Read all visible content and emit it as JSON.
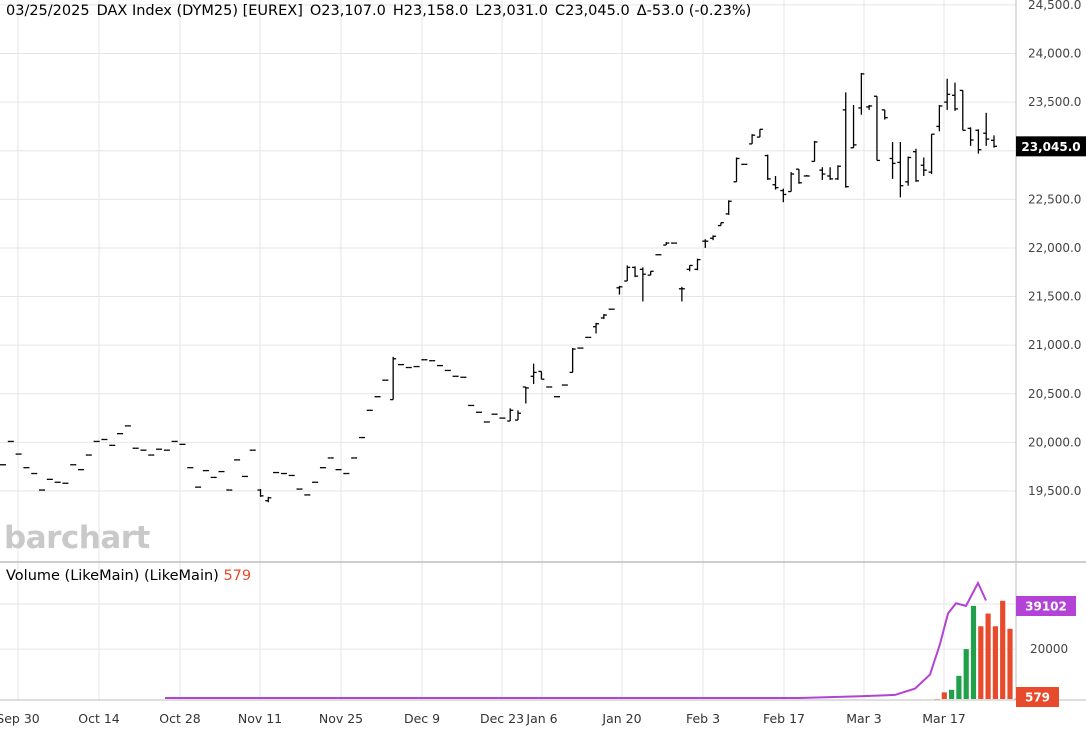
{
  "header": {
    "date": "03/25/2025",
    "instrument": "DAX Index (DYM25) [EUREX]",
    "open": "O23,107.0",
    "high": "H23,158.0",
    "low": "L23,031.0",
    "close": "C23,045.0",
    "change": "Δ-53.0 (-0.23%)"
  },
  "watermark": "barchart",
  "volume_header": {
    "label": "Volume (LikeMain)  (LikeMain)",
    "value": "579"
  },
  "colors": {
    "grid": "#e6e6e6",
    "bar": "#000000",
    "vol_up": "#21a04a",
    "vol_down": "#e84a2c",
    "avg_line": "#b342d6",
    "price_tag_bg": "#000000",
    "avg_tag_bg": "#b342d6",
    "vol_tag_bg": "#e84a2c"
  },
  "chart_data": [
    {
      "type": "ohlc",
      "title": "DAX Index (DYM25) [EUREX]",
      "x_ticks": [
        "Sep 30",
        "Oct 14",
        "Oct 28",
        "Nov 11",
        "Nov 25",
        "Dec 9",
        "Dec 23",
        "Jan 6",
        "Jan 20",
        "Feb 3",
        "Feb 17",
        "Mar 3",
        "Mar 17"
      ],
      "y_ticks": [
        "19,500.0",
        "20,000.0",
        "20,500.0",
        "21,000.0",
        "21,500.0",
        "22,000.0",
        "22,500.0",
        "23,000.0",
        "23,500.0",
        "24,000.0",
        "24,500.0"
      ],
      "ylim": [
        18770,
        24550
      ],
      "last_price_label": "23,045.0",
      "bars": [
        [
          19770,
          19770,
          19770,
          19770
        ],
        [
          20010,
          20010,
          20010,
          20010
        ],
        [
          19880,
          19880,
          19880,
          19880
        ],
        [
          19740,
          19740,
          19740,
          19740
        ],
        [
          19680,
          19680,
          19680,
          19680
        ],
        [
          19510,
          19510,
          19510,
          19510
        ],
        [
          19620,
          19620,
          19620,
          19620
        ],
        [
          19590,
          19590,
          19590,
          19590
        ],
        [
          19580,
          19580,
          19580,
          19580
        ],
        [
          19770,
          19770,
          19770,
          19770
        ],
        [
          19720,
          19720,
          19720,
          19720
        ],
        [
          19870,
          19870,
          19870,
          19870
        ],
        [
          20010,
          20010,
          20010,
          20010
        ],
        [
          20030,
          20030,
          20030,
          20030
        ],
        [
          19970,
          19970,
          19970,
          19970
        ],
        [
          20090,
          20090,
          20090,
          20090
        ],
        [
          20170,
          20170,
          20170,
          20170
        ],
        [
          19940,
          19940,
          19940,
          19940
        ],
        [
          19920,
          19920,
          19920,
          19920
        ],
        [
          19870,
          19870,
          19870,
          19870
        ],
        [
          19930,
          19930,
          19930,
          19930
        ],
        [
          19920,
          19920,
          19920,
          19920
        ],
        [
          20010,
          20010,
          20010,
          20010
        ],
        [
          19980,
          19980,
          19980,
          19980
        ],
        [
          19740,
          19740,
          19740,
          19740
        ],
        [
          19540,
          19540,
          19540,
          19540
        ],
        [
          19710,
          19710,
          19710,
          19710
        ],
        [
          19640,
          19640,
          19640,
          19640
        ],
        [
          19700,
          19700,
          19700,
          19700
        ],
        [
          19510,
          19510,
          19510,
          19510
        ],
        [
          19820,
          19820,
          19820,
          19820
        ],
        [
          19650,
          19650,
          19650,
          19650
        ],
        [
          19920,
          19920,
          19920,
          19920
        ],
        [
          19510,
          19440,
          19520,
          19450
        ],
        [
          19400,
          19385,
          19440,
          19430
        ],
        [
          19690,
          19690,
          19690,
          19690
        ],
        [
          19680,
          19680,
          19680,
          19680
        ],
        [
          19660,
          19660,
          19660,
          19660
        ],
        [
          19520,
          19520,
          19520,
          19520
        ],
        [
          19460,
          19460,
          19460,
          19460
        ],
        [
          19590,
          19590,
          19590,
          19590
        ],
        [
          19740,
          19740,
          19740,
          19740
        ],
        [
          19840,
          19840,
          19840,
          19840
        ],
        [
          19720,
          19720,
          19720,
          19720
        ],
        [
          19680,
          19680,
          19680,
          19680
        ],
        [
          19840,
          19840,
          19840,
          19840
        ],
        [
          20050,
          20050,
          20050,
          20050
        ],
        [
          20330,
          20330,
          20330,
          20330
        ],
        [
          20470,
          20470,
          20470,
          20470
        ],
        [
          20640,
          20640,
          20640,
          20640
        ],
        [
          20440,
          20440,
          20880,
          20860
        ],
        [
          20800,
          20800,
          20800,
          20800
        ],
        [
          20770,
          20770,
          20770,
          20770
        ],
        [
          20780,
          20780,
          20780,
          20780
        ],
        [
          20850,
          20850,
          20850,
          20850
        ],
        [
          20840,
          20840,
          20840,
          20840
        ],
        [
          20790,
          20790,
          20790,
          20790
        ],
        [
          20740,
          20740,
          20740,
          20740
        ],
        [
          20680,
          20680,
          20680,
          20680
        ],
        [
          20670,
          20670,
          20670,
          20670
        ],
        [
          20380,
          20380,
          20380,
          20380
        ],
        [
          20310,
          20310,
          20310,
          20310
        ],
        [
          20210,
          20210,
          20210,
          20210
        ],
        [
          20290,
          20290,
          20290,
          20290
        ],
        [
          20250,
          20250,
          20250,
          20250
        ],
        [
          20220,
          20220,
          20350,
          20330
        ],
        [
          20230,
          20230,
          20330,
          20300
        ],
        [
          20570,
          20400,
          20570,
          20560
        ],
        [
          20680,
          20600,
          20810,
          20720
        ],
        [
          20730,
          20650,
          20730,
          20650
        ],
        [
          20570,
          20570,
          20570,
          20570
        ],
        [
          20470,
          20470,
          20470,
          20470
        ],
        [
          20590,
          20590,
          20590,
          20590
        ],
        [
          20720,
          20720,
          20970,
          20960
        ],
        [
          20970,
          20970,
          20970,
          20970
        ],
        [
          21080,
          21080,
          21080,
          21080
        ],
        [
          21190,
          21120,
          21230,
          21220
        ],
        [
          21280,
          21270,
          21320,
          21310
        ],
        [
          21370,
          21370,
          21370,
          21370
        ],
        [
          21590,
          21520,
          21610,
          21600
        ],
        [
          21660,
          21660,
          21820,
          21800
        ],
        [
          21800,
          21700,
          21810,
          21710
        ],
        [
          21780,
          21450,
          21800,
          21730
        ],
        [
          21720,
          21720,
          21760,
          21760
        ],
        [
          21930,
          21930,
          21930,
          21930
        ],
        [
          22030,
          22030,
          22060,
          22050
        ],
        [
          22050,
          22050,
          22050,
          22050
        ],
        [
          21580,
          21450,
          21600,
          21580
        ],
        [
          21780,
          21760,
          21820,
          21820
        ],
        [
          21780,
          21770,
          21890,
          21880
        ],
        [
          22070,
          22000,
          22090,
          22070
        ],
        [
          22100,
          22080,
          22130,
          22120
        ],
        [
          22230,
          22230,
          22260,
          22260
        ],
        [
          22350,
          22340,
          22490,
          22480
        ],
        [
          22680,
          22680,
          22930,
          22920
        ],
        [
          22860,
          22860,
          22860,
          22860
        ],
        [
          23070,
          23070,
          23170,
          23160
        ],
        [
          23140,
          23140,
          23220,
          23220
        ],
        [
          22950,
          22700,
          22960,
          22710
        ],
        [
          22650,
          22600,
          22740,
          22620
        ],
        [
          22590,
          22470,
          22610,
          22550
        ],
        [
          22580,
          22580,
          22780,
          22760
        ],
        [
          22810,
          22660,
          22810,
          22670
        ],
        [
          22740,
          22740,
          22750,
          22740
        ],
        [
          22890,
          22890,
          23100,
          23090
        ],
        [
          22800,
          22700,
          22830,
          22760
        ],
        [
          22740,
          22700,
          22830,
          22710
        ],
        [
          22710,
          22700,
          22850,
          22840
        ],
        [
          23420,
          22620,
          23600,
          22630
        ],
        [
          23030,
          23030,
          23470,
          23060
        ],
        [
          23440,
          23370,
          23800,
          23790
        ],
        [
          23450,
          23420,
          23470,
          23460
        ],
        [
          23560,
          22900,
          23560,
          22900
        ],
        [
          23420,
          23320,
          23420,
          23340
        ],
        [
          22920,
          22710,
          23090,
          22870
        ],
        [
          22880,
          22520,
          23090,
          22640
        ],
        [
          22680,
          22640,
          22940,
          22930
        ],
        [
          22990,
          22680,
          23020,
          22690
        ],
        [
          22850,
          22740,
          22930,
          22800
        ],
        [
          22780,
          22760,
          23170,
          23170
        ],
        [
          23250,
          23200,
          23470,
          23460
        ],
        [
          23500,
          23420,
          23740,
          23580
        ],
        [
          23570,
          23410,
          23700,
          23430
        ],
        [
          23620,
          23210,
          23620,
          23210
        ],
        [
          23230,
          23050,
          23240,
          23110
        ],
        [
          23210,
          22970,
          23220,
          23010
        ],
        [
          23180,
          23050,
          23390,
          23120
        ],
        [
          23107,
          23031,
          23158,
          23045
        ]
      ]
    },
    {
      "type": "bar",
      "title": "Volume (LikeMain)",
      "y_ticks": [
        "20000"
      ],
      "ylim": [
        0,
        46000
      ],
      "avg_value": "39102",
      "last_volume": "579",
      "series": [
        {
          "name": "Volume",
          "values": [
            300,
            3000,
            4000,
            9500,
            20000,
            37000,
            29000,
            34000,
            29000,
            39000,
            28000,
            579
          ],
          "directions": [
            "down",
            "down",
            "up",
            "up",
            "up",
            "up",
            "down",
            "down",
            "down",
            "down",
            "down",
            "down"
          ]
        },
        {
          "name": "LikeMain",
          "values": [
            100,
            200,
            400,
            800,
            1500,
            2000,
            4500,
            10000,
            22000,
            34000,
            38000,
            37000,
            46000,
            39102
          ]
        }
      ]
    }
  ]
}
